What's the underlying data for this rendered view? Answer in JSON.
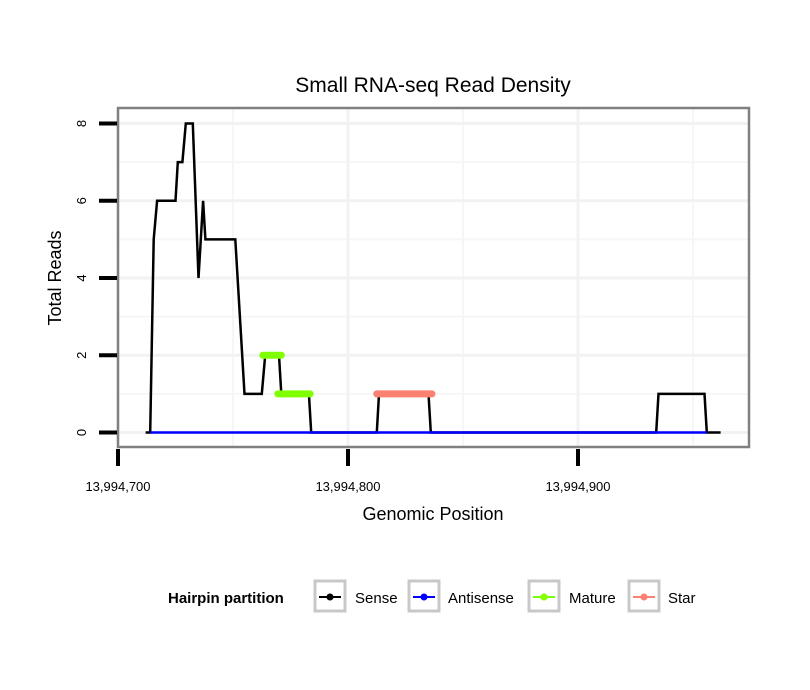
{
  "chart_data": {
    "type": "line",
    "title": "Small RNA-seq Read Density",
    "xlabel": "Genomic Position",
    "ylabel": "Total Reads",
    "xlim": [
      13994700,
      13994975
    ],
    "ylim": [
      -0.4,
      8.4
    ],
    "x_ticks": [
      13994700,
      13994800,
      13994900
    ],
    "x_tick_labels": [
      "13,994,700",
      "13,994,800",
      "13,994,900"
    ],
    "y_ticks": [
      0,
      2,
      4,
      6,
      8
    ],
    "y_tick_labels": [
      "0",
      "2",
      "4",
      "6",
      "8"
    ],
    "grid": true,
    "legend": {
      "title": "Hairpin partition",
      "placement": "bottom",
      "entries": [
        {
          "name": "Sense",
          "color": "#000000"
        },
        {
          "name": "Antisense",
          "color": "#0000ff"
        },
        {
          "name": "Mature",
          "color": "#7fff00"
        },
        {
          "name": "Star",
          "color": "#fa8072"
        }
      ]
    },
    "series": [
      {
        "name": "Sense",
        "color": "#000000",
        "x": [
          13994712,
          13994714,
          13994715.5,
          13994717,
          13994725,
          13994726,
          13994728,
          13994729.5,
          13994732.5,
          13994735,
          13994737,
          13994738,
          13994751,
          13994755,
          13994762.5,
          13994764,
          13994770,
          13994771,
          13994783,
          13994784,
          13994812.5,
          13994813.5,
          13994835,
          13994836,
          13994934,
          13994935,
          13994955,
          13994956,
          13994962
        ],
        "y": [
          0,
          0,
          5,
          6,
          6,
          7,
          7,
          8,
          8,
          4,
          6,
          5,
          5,
          1,
          1,
          2,
          2,
          1,
          1,
          0,
          0,
          1,
          1,
          0,
          0,
          1,
          1,
          0,
          0
        ]
      },
      {
        "name": "Antisense",
        "color": "#0000ff",
        "x": [
          13994714,
          13994956
        ],
        "y": [
          0,
          0
        ]
      },
      {
        "name": "Mature",
        "color": "#7fff00",
        "segments": [
          {
            "x": [
              13994763,
              13994771
            ],
            "y": 2
          },
          {
            "x": [
              13994769.5,
              13994783.5
            ],
            "y": 1
          }
        ]
      },
      {
        "name": "Star",
        "color": "#fa8072",
        "segments": [
          {
            "x": [
              13994812.5,
              13994836.5
            ],
            "y": 1
          }
        ]
      }
    ]
  }
}
